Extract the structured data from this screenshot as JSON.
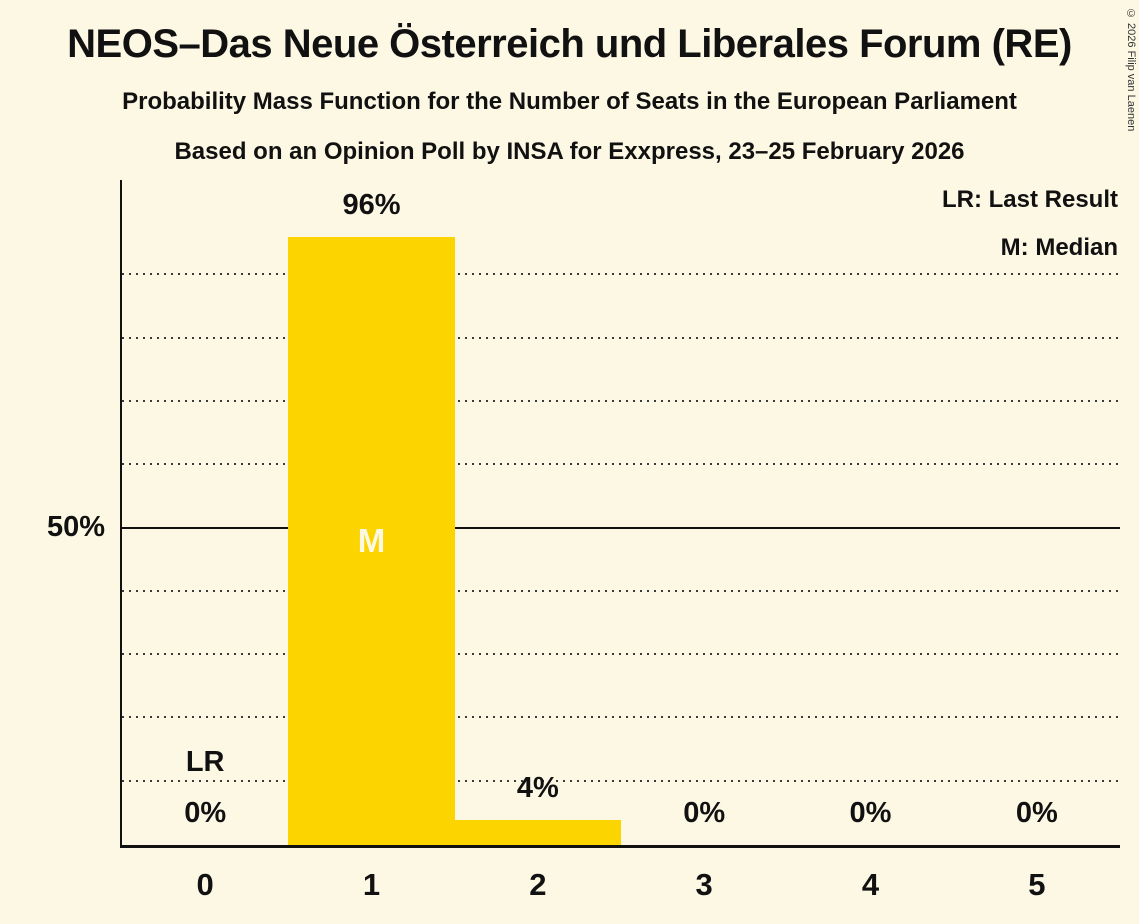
{
  "title": "NEOS–Das Neue Österreich und Liberales Forum (RE)",
  "subtitle1": "Probability Mass Function for the Number of Seats in the European Parliament",
  "subtitle2": "Based on an Opinion Poll by INSA for Exxpress, 23–25 February 2026",
  "copyright": "© 2026 Filip van Laenen",
  "legend": {
    "lr": "LR: Last Result",
    "m": "M: Median"
  },
  "colors": {
    "background": "#FCF8E4",
    "bar": "#FCD400",
    "text": "#111111",
    "median_text": "#FCF8E4"
  },
  "chart_data": {
    "type": "bar",
    "categories": [
      "0",
      "1",
      "2",
      "3",
      "4",
      "5"
    ],
    "values": [
      0,
      96,
      4,
      0,
      0,
      0
    ],
    "labels": [
      "0%",
      "96%",
      "4%",
      "0%",
      "0%",
      "0%"
    ],
    "title": "Probability Mass Function for the Number of Seats in the European Parliament",
    "xlabel": "",
    "ylabel": "",
    "ylabel_tick": "50%",
    "ylim": [
      0,
      100
    ],
    "gridlines_percent": [
      10,
      20,
      30,
      40,
      60,
      70,
      80,
      90
    ],
    "solid_line_percent": 50,
    "legend_position": "top-right",
    "median_category": "1",
    "median_marker": "M",
    "last_result_category": "0",
    "last_result_marker": "LR"
  }
}
